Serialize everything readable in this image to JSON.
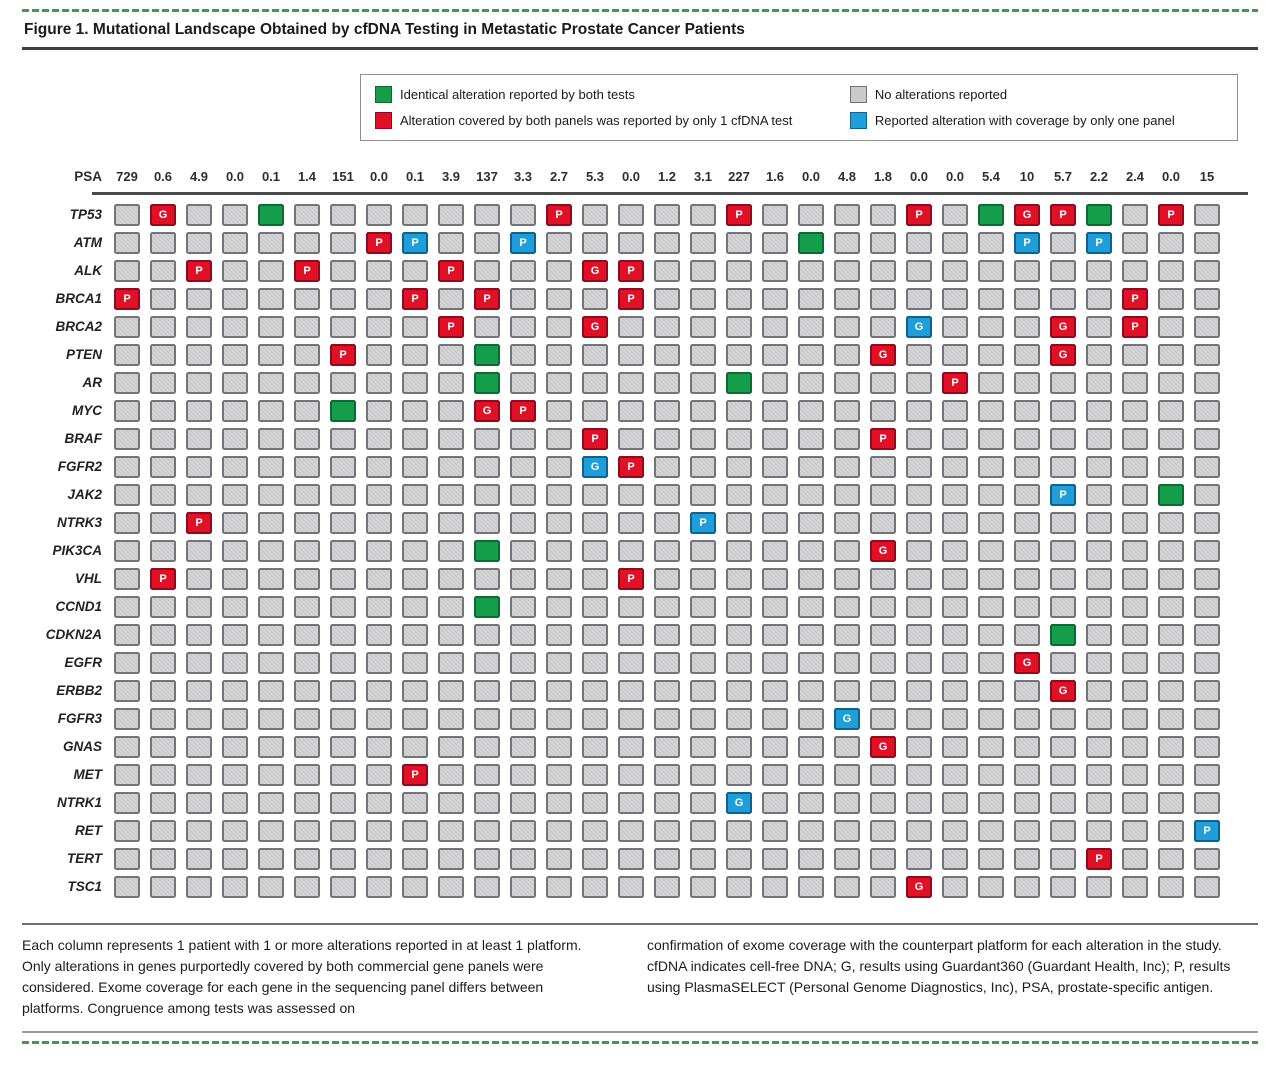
{
  "title": "Figure 1. Mutational Landscape Obtained by cfDNA Testing in Metastatic Prostate Cancer Patients",
  "legend": {
    "items": [
      {
        "key": "green",
        "label": "Identical alteration reported by both tests",
        "color": "#149E4C",
        "swatch_style": "background:#149E4C;border-color:#0C6B33"
      },
      {
        "key": "red",
        "label": "Alteration covered by both panels was reported by only 1 cfDNA test",
        "color": "#E01127",
        "swatch_style": "background:#E01127;border-color:#8F0A1C"
      },
      {
        "key": "gray",
        "label": "No alterations reported",
        "color": "#CACACC",
        "swatch_style": "background:#CACACC;border-color:#6F6F74"
      },
      {
        "key": "blue",
        "label": "Reported alteration with coverage by only one panel",
        "color": "#1E9FDA",
        "swatch_style": "background:#1E9FDA;border-color:#11618C"
      }
    ]
  },
  "chart_data": {
    "type": "heatmap",
    "psa_label": "PSA",
    "psa_values": [
      "729",
      "0.6",
      "4.9",
      "0.0",
      "0.1",
      "1.4",
      "151",
      "0.0",
      "0.1",
      "3.9",
      "137",
      "3.3",
      "2.7",
      "5.3",
      "0.0",
      "1.2",
      "3.1",
      "227",
      "1.6",
      "0.0",
      "4.8",
      "1.8",
      "0.0",
      "0.0",
      "5.4",
      "10",
      "5.7",
      "2.2",
      "2.4",
      "0.0",
      "15"
    ],
    "genes": [
      "TP53",
      "ATM",
      "ALK",
      "BRCA1",
      "BRCA2",
      "PTEN",
      "AR",
      "MYC",
      "BRAF",
      "FGFR2",
      "JAK2",
      "NTRK3",
      "PIK3CA",
      "VHL",
      "CCND1",
      "CDKN2A",
      "EGFR",
      "ERBB2",
      "FGFR3",
      "GNAS",
      "MET",
      "NTRK1",
      "RET",
      "TERT",
      "TSC1"
    ],
    "cell_states": {
      "green": "Identical alteration reported by both tests",
      "red": "Alteration covered by both panels was reported by only 1 cfDNA test",
      "gray": "No alterations reported",
      "blue": "Reported alteration with coverage by only one panel"
    },
    "palette": {
      "green": {
        "fill": "#149E4C",
        "border": "#0C6B33"
      },
      "red": {
        "fill": "#E01127",
        "border": "#8F0A1C"
      },
      "blue": {
        "fill": "#1E9FDA",
        "border": "#11618C"
      },
      "gray": {
        "fill": "#CACACC",
        "border": "#73737A"
      }
    },
    "alterations": {
      "TP53": [
        [
          2,
          "red",
          "G"
        ],
        [
          5,
          "green",
          ""
        ],
        [
          13,
          "red",
          "P"
        ],
        [
          18,
          "red",
          "P"
        ],
        [
          23,
          "red",
          "P"
        ],
        [
          25,
          "green",
          ""
        ],
        [
          26,
          "red",
          "G"
        ],
        [
          27,
          "red",
          "P"
        ],
        [
          28,
          "green",
          ""
        ],
        [
          30,
          "red",
          "P"
        ]
      ],
      "ATM": [
        [
          8,
          "red",
          "P"
        ],
        [
          9,
          "blue",
          "P"
        ],
        [
          12,
          "blue",
          "P"
        ],
        [
          20,
          "green",
          ""
        ],
        [
          26,
          "blue",
          "P"
        ],
        [
          28,
          "blue",
          "P"
        ]
      ],
      "ALK": [
        [
          3,
          "red",
          "P"
        ],
        [
          6,
          "red",
          "P"
        ],
        [
          10,
          "red",
          "P"
        ],
        [
          14,
          "red",
          "G"
        ],
        [
          15,
          "red",
          "P"
        ]
      ],
      "BRCA1": [
        [
          1,
          "red",
          "P"
        ],
        [
          9,
          "red",
          "P"
        ],
        [
          11,
          "red",
          "P"
        ],
        [
          15,
          "red",
          "P"
        ],
        [
          29,
          "red",
          "P"
        ]
      ],
      "BRCA2": [
        [
          10,
          "red",
          "P"
        ],
        [
          14,
          "red",
          "G"
        ],
        [
          23,
          "blue",
          "G"
        ],
        [
          27,
          "red",
          "G"
        ],
        [
          29,
          "red",
          "P"
        ]
      ],
      "PTEN": [
        [
          7,
          "red",
          "P"
        ],
        [
          11,
          "green",
          ""
        ],
        [
          22,
          "red",
          "G"
        ],
        [
          27,
          "red",
          "G"
        ]
      ],
      "AR": [
        [
          11,
          "green",
          ""
        ],
        [
          18,
          "green",
          ""
        ],
        [
          24,
          "red",
          "P"
        ]
      ],
      "MYC": [
        [
          7,
          "green",
          ""
        ],
        [
          11,
          "red",
          "G"
        ],
        [
          12,
          "red",
          "P"
        ]
      ],
      "BRAF": [
        [
          14,
          "red",
          "P"
        ],
        [
          22,
          "red",
          "P"
        ]
      ],
      "FGFR2": [
        [
          14,
          "blue",
          "G"
        ],
        [
          15,
          "red",
          "P"
        ]
      ],
      "JAK2": [
        [
          27,
          "blue",
          "P"
        ],
        [
          30,
          "green",
          ""
        ]
      ],
      "NTRK3": [
        [
          3,
          "red",
          "P"
        ],
        [
          17,
          "blue",
          "P"
        ]
      ],
      "PIK3CA": [
        [
          11,
          "green",
          ""
        ],
        [
          22,
          "red",
          "G"
        ]
      ],
      "VHL": [
        [
          2,
          "red",
          "P"
        ],
        [
          15,
          "red",
          "P"
        ]
      ],
      "CCND1": [
        [
          11,
          "green",
          ""
        ]
      ],
      "CDKN2A": [
        [
          27,
          "green",
          ""
        ]
      ],
      "EGFR": [
        [
          26,
          "red",
          "G"
        ]
      ],
      "ERBB2": [
        [
          27,
          "red",
          "G"
        ]
      ],
      "FGFR3": [
        [
          21,
          "blue",
          "G"
        ]
      ],
      "GNAS": [
        [
          22,
          "red",
          "G"
        ]
      ],
      "MET": [
        [
          9,
          "red",
          "P"
        ]
      ],
      "NTRK1": [
        [
          18,
          "blue",
          "G"
        ]
      ],
      "RET": [
        [
          31,
          "blue",
          "P"
        ]
      ],
      "TERT": [
        [
          28,
          "red",
          "P"
        ]
      ],
      "TSC1": [
        [
          23,
          "red",
          "G"
        ]
      ]
    }
  },
  "caption": {
    "left": "Each column represents 1 patient with 1 or more alterations reported in at least 1 platform. Only alterations in genes purportedly covered by both commercial gene panels were considered. Exome coverage for each gene in the sequencing panel differs between platforms. Congruence among tests was assessed on",
    "right": "confirmation of exome coverage with the counterpart platform for each alteration in the study. cfDNA indicates cell-free DNA; G, results using Guardant360 (Guardant Health, Inc); P, results using PlasmaSELECT (Personal Genome Diagnostics, Inc), PSA, prostate-specific antigen."
  }
}
